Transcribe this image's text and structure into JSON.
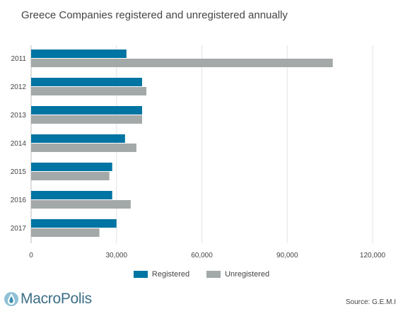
{
  "chart_data": {
    "type": "bar",
    "orientation": "horizontal",
    "title": "Greece Companies registered and unregistered annually",
    "categories": [
      "2011",
      "2012",
      "2013",
      "2014",
      "2015",
      "2016",
      "2017"
    ],
    "series": [
      {
        "name": "Registered",
        "color": "#0074a2",
        "values": [
          33500,
          39000,
          39000,
          33000,
          28500,
          28500,
          30000
        ]
      },
      {
        "name": "Unregistered",
        "color": "#a2a9a8",
        "values": [
          106000,
          40500,
          39000,
          37000,
          27500,
          35000,
          24000
        ]
      }
    ],
    "xlim": [
      0,
      120000
    ],
    "xticks": [
      "0",
      "30,000",
      "60,000",
      "90,000",
      "120,000"
    ],
    "grid": "vertical",
    "legend_position": "bottom"
  },
  "branding": {
    "logo_text": "MacroPolis",
    "logo_icon": "droplet-circle-icon"
  },
  "source": "Source: G.E.M.I"
}
